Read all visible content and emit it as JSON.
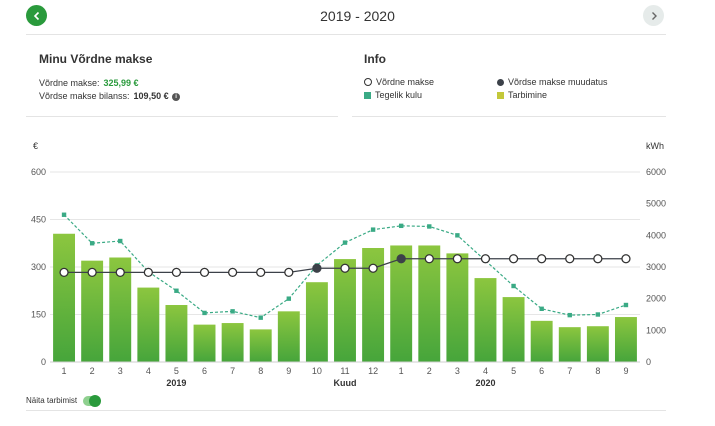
{
  "header": {
    "period": "2019 - 2020",
    "prev_icon": "chevron-left-icon",
    "next_icon": "chevron-right-icon",
    "prev_color": "#2a9a3c"
  },
  "summary": {
    "title": "Minu Võrdne makse",
    "equal_payment_label": "Võrdne makse:",
    "equal_payment_value": "325,99 €",
    "balance_label": "Võrdse makse bilanss:",
    "balance_value": "109,50 €",
    "info_icon": "info-icon"
  },
  "info": {
    "title": "Info",
    "legend": [
      {
        "label": "Võrdne makse",
        "marker": "open-circle",
        "color": "#333333"
      },
      {
        "label": "Võrdse makse muudatus",
        "marker": "filled-circle",
        "color": "#3c4149"
      },
      {
        "label": "Tegelik kulu",
        "marker": "square",
        "color": "#3aaa85"
      },
      {
        "label": "Tarbimine",
        "marker": "square",
        "color": "#c3c83a"
      }
    ]
  },
  "chart_data": {
    "type": "bar",
    "left_unit": "€",
    "right_unit": "kWh",
    "x_title": "Kuud",
    "categories": [
      "1",
      "2",
      "3",
      "4",
      "5",
      "6",
      "7",
      "8",
      "9",
      "10",
      "11",
      "12",
      "1",
      "2",
      "3",
      "4",
      "5",
      "6",
      "7",
      "8",
      "9"
    ],
    "year_labels": [
      {
        "label": "2019",
        "at_index": 4
      },
      {
        "label": "2020",
        "at_index": 15
      }
    ],
    "left_axis": {
      "ylim": [
        0,
        600
      ],
      "ticks": [
        "0",
        "150",
        "300",
        "450",
        "600"
      ]
    },
    "right_axis": {
      "ylim": [
        0,
        6000
      ],
      "ticks": [
        "0",
        "1000",
        "2000",
        "3000",
        "4000",
        "5000",
        "6000"
      ]
    },
    "series": [
      {
        "name": "Tarbimine",
        "axis": "right",
        "type": "bar",
        "color_top": "#8cc63f",
        "color_bottom": "#46a53b",
        "values": [
          4050,
          3200,
          3300,
          2350,
          1800,
          1180,
          1230,
          1030,
          1600,
          2520,
          3250,
          3600,
          3680,
          3680,
          3430,
          2650,
          2050,
          1300,
          1100,
          1130,
          1420
        ]
      },
      {
        "name": "Tegelik kulu",
        "axis": "left",
        "type": "line",
        "style": "dashed",
        "color": "#3aaa85",
        "values": [
          465,
          375,
          382,
          285,
          225,
          155,
          160,
          140,
          200,
          305,
          377,
          418,
          430,
          428,
          400,
          320,
          240,
          168,
          148,
          150,
          180
        ]
      },
      {
        "name": "Võrdne makse",
        "axis": "left",
        "type": "line",
        "color": "#3c4149",
        "values": [
          283,
          283,
          283,
          283,
          283,
          283,
          283,
          283,
          283,
          296,
          296,
          296,
          326,
          326,
          326,
          326,
          326,
          326,
          326,
          326,
          326
        ],
        "changes_at": [
          9,
          12
        ]
      }
    ]
  },
  "toggle": {
    "label": "Näita tarbimist",
    "on": true
  }
}
